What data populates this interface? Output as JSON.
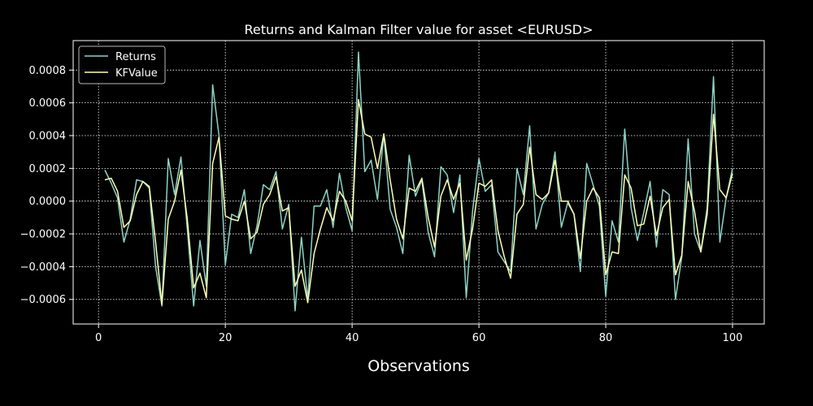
{
  "chart_data": {
    "type": "line",
    "title": "Returns and Kalman Filter value for asset <EURUSD>",
    "xlabel": "Observations",
    "ylabel": "",
    "xlim": [
      -4,
      105
    ],
    "ylim": [
      -0.00075,
      0.00098
    ],
    "xticks": [
      0,
      20,
      40,
      60,
      80,
      100
    ],
    "xtick_labels": [
      "0",
      "20",
      "40",
      "60",
      "80",
      "100"
    ],
    "yticks": [
      -0.0006,
      -0.0004,
      -0.0002,
      0.0,
      0.0002,
      0.0004,
      0.0006,
      0.0008
    ],
    "ytick_labels": [
      "−0.0006",
      "−0.0004",
      "−0.0002",
      "0.0000",
      "0.0002",
      "0.0004",
      "0.0006",
      "0.0008"
    ],
    "grid": true,
    "legend_position": "top-left",
    "x": [
      1,
      2,
      3,
      4,
      5,
      6,
      7,
      8,
      9,
      10,
      11,
      12,
      13,
      14,
      15,
      16,
      17,
      18,
      19,
      20,
      21,
      22,
      23,
      24,
      25,
      26,
      27,
      28,
      29,
      30,
      31,
      32,
      33,
      34,
      35,
      36,
      37,
      38,
      39,
      40,
      41,
      42,
      43,
      44,
      45,
      46,
      47,
      48,
      49,
      50,
      51,
      52,
      53,
      54,
      55,
      56,
      57,
      58,
      59,
      60,
      61,
      62,
      63,
      64,
      65,
      66,
      67,
      68,
      69,
      70,
      71,
      72,
      73,
      74,
      75,
      76,
      77,
      78,
      79,
      80,
      81,
      82,
      83,
      84,
      85,
      86,
      87,
      88,
      89,
      90,
      91,
      92,
      93,
      94,
      95,
      96,
      97,
      98,
      99,
      100
    ],
    "series": [
      {
        "name": "Returns",
        "color": "#8dd3c7",
        "values": [
          0.00019,
          0.00011,
          2e-05,
          -0.00025,
          -0.00011,
          0.00013,
          0.00012,
          8e-05,
          -0.0004,
          -0.00064,
          0.00026,
          4e-05,
          0.00027,
          -0.00017,
          -0.00064,
          -0.00024,
          -0.00052,
          0.00071,
          0.0004,
          -0.00039,
          -8e-05,
          -0.0001,
          7e-05,
          -0.00032,
          -0.00015,
          0.0001,
          7e-05,
          0.00018,
          -0.00017,
          -2e-05,
          -0.00067,
          -0.00022,
          -0.0006,
          -3e-05,
          -3e-05,
          7e-05,
          -0.00016,
          0.00017,
          -4e-05,
          -0.00018,
          0.00091,
          0.00018,
          0.00025,
          1e-05,
          0.00041,
          -5e-05,
          -0.00016,
          -0.00032,
          0.00028,
          3e-05,
          0.00013,
          -0.00019,
          -0.00034,
          0.00021,
          0.00016,
          -7e-05,
          0.00016,
          -0.00059,
          -6e-05,
          0.00026,
          6e-05,
          0.0001,
          -0.00031,
          -0.00037,
          -0.00043,
          0.0002,
          4e-05,
          0.00046,
          -0.00017,
          -2e-05,
          5e-05,
          0.0003,
          -0.00016,
          -1e-05,
          -8e-05,
          -0.00043,
          0.00023,
          0.0001,
          -3e-05,
          -0.00058,
          -0.00012,
          -0.00025,
          0.00044,
          -4e-05,
          -0.00024,
          -7e-05,
          0.00012,
          -0.00028,
          7e-05,
          4e-05,
          -0.0006,
          -0.00034,
          0.00038,
          -0.0002,
          -0.00031,
          -4e-05,
          0.00076,
          -0.00025,
          2e-05,
          0.0002
        ]
      },
      {
        "name": "KFValue",
        "color": "#ffffb3",
        "values": [
          0.00013,
          0.00014,
          6e-05,
          -0.00016,
          -0.00012,
          4e-05,
          0.00012,
          9e-05,
          -0.00025,
          -0.00063,
          -0.00011,
          0.0,
          0.00019,
          -0.00011,
          -0.00053,
          -0.00044,
          -0.00059,
          0.00023,
          0.00039,
          -9e-05,
          -0.00011,
          -0.00012,
          0.0,
          -0.00023,
          -0.00019,
          -2e-05,
          4e-05,
          0.00015,
          -6e-05,
          -4e-05,
          -0.00052,
          -0.00042,
          -0.00062,
          -0.00032,
          -0.00017,
          -4e-05,
          -0.00012,
          6e-05,
          0.0,
          -0.00012,
          0.00062,
          0.00041,
          0.00039,
          0.0002,
          0.00041,
          0.00013,
          -0.00011,
          -0.00023,
          8e-05,
          6e-05,
          0.00014,
          -0.0001,
          -0.00028,
          3e-05,
          0.00013,
          1e-05,
          0.00011,
          -0.00036,
          -0.00017,
          0.00011,
          9e-05,
          0.00013,
          -0.00018,
          -0.00034,
          -0.00047,
          -8e-05,
          -2e-05,
          0.00033,
          4e-05,
          1e-05,
          5e-05,
          0.00025,
          0.0,
          0.0,
          -8e-05,
          -0.00035,
          0.0,
          8e-05,
          2e-05,
          -0.00045,
          -0.00031,
          -0.00032,
          0.00016,
          8e-05,
          -0.00015,
          -0.00014,
          3e-05,
          -0.00021,
          -4e-05,
          1e-05,
          -0.00045,
          -0.00033,
          0.00012,
          -6e-05,
          -0.00031,
          -8e-05,
          0.00053,
          7e-05,
          2e-05,
          0.00017
        ]
      }
    ]
  }
}
